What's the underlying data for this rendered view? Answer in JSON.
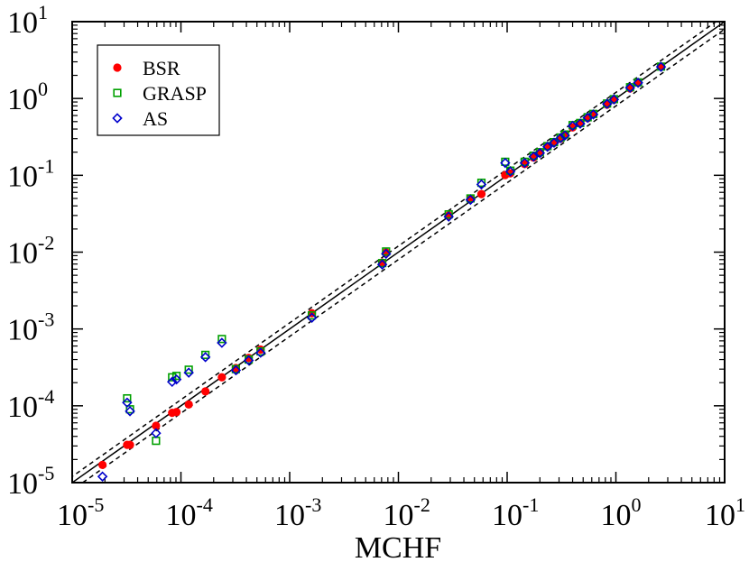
{
  "chart_data": {
    "type": "scatter",
    "title": "",
    "xlabel": "MCHF",
    "ylabel": "",
    "xscale": "log",
    "yscale": "log",
    "xlim": [
      1e-05,
      10
    ],
    "ylim": [
      1e-05,
      10
    ],
    "x_ticks": [
      {
        "base": "10",
        "exp": "-5",
        "value": 1e-05
      },
      {
        "base": "10",
        "exp": "-4",
        "value": 0.0001
      },
      {
        "base": "10",
        "exp": "-3",
        "value": 0.001
      },
      {
        "base": "10",
        "exp": "-2",
        "value": 0.01
      },
      {
        "base": "10",
        "exp": "-1",
        "value": 0.1
      },
      {
        "base": "10",
        "exp": "0",
        "value": 1
      },
      {
        "base": "10",
        "exp": "1",
        "value": 10
      }
    ],
    "y_ticks": [
      {
        "base": "10",
        "exp": "-5",
        "value": 1e-05
      },
      {
        "base": "10",
        "exp": "-4",
        "value": 0.0001
      },
      {
        "base": "10",
        "exp": "-3",
        "value": 0.001
      },
      {
        "base": "10",
        "exp": "-2",
        "value": 0.01
      },
      {
        "base": "10",
        "exp": "-1",
        "value": 0.1
      },
      {
        "base": "10",
        "exp": "0",
        "value": 1
      },
      {
        "base": "10",
        "exp": "1",
        "value": 10
      }
    ],
    "legend_position": "top-left",
    "reference_lines": [
      {
        "name": "y = x",
        "factor": 1.0,
        "style": "solid",
        "color": "#000000"
      },
      {
        "name": "+20%",
        "factor": 1.2,
        "style": "dashed",
        "color": "#000000"
      },
      {
        "name": "-20%",
        "factor": 0.8,
        "style": "dashed",
        "color": "#000000"
      }
    ],
    "series": [
      {
        "name": "BSR",
        "marker": "circle",
        "color": "#ff0000",
        "points": [
          [
            1.9e-05,
            1.7e-05
          ],
          [
            3.2e-05,
            3.1e-05
          ],
          [
            3.4e-05,
            3.1e-05
          ],
          [
            5.9e-05,
            5.5e-05
          ],
          [
            8.3e-05,
            8.1e-05
          ],
          [
            9.1e-05,
            8.3e-05
          ],
          [
            0.000118,
            0.000104
          ],
          [
            0.000168,
            0.000154
          ],
          [
            0.000238,
            0.000235
          ],
          [
            0.00032,
            0.00031
          ],
          [
            0.00042,
            0.00042
          ],
          [
            0.00054,
            0.00054
          ],
          [
            0.0016,
            0.0016
          ],
          [
            0.0071,
            0.0073
          ],
          [
            0.0077,
            0.0099
          ],
          [
            0.029,
            0.03
          ],
          [
            0.046,
            0.049
          ],
          [
            0.058,
            0.057
          ],
          [
            0.096,
            0.101
          ],
          [
            0.107,
            0.106
          ],
          [
            0.145,
            0.14
          ],
          [
            0.175,
            0.17
          ],
          [
            0.2,
            0.195
          ],
          [
            0.235,
            0.235
          ],
          [
            0.27,
            0.265
          ],
          [
            0.31,
            0.3
          ],
          [
            0.34,
            0.335
          ],
          [
            0.4,
            0.42
          ],
          [
            0.47,
            0.475
          ],
          [
            0.55,
            0.555
          ],
          [
            0.62,
            0.62
          ],
          [
            0.83,
            0.83
          ],
          [
            0.96,
            0.96
          ],
          [
            1.35,
            1.35
          ],
          [
            1.6,
            1.6
          ],
          [
            2.6,
            2.6
          ]
        ]
      },
      {
        "name": "GRASP",
        "marker": "square",
        "color": "#00a000",
        "points": [
          [
            3.2e-05,
            0.000125
          ],
          [
            3.4e-05,
            9e-05
          ],
          [
            5.9e-05,
            3.5e-05
          ],
          [
            8.3e-05,
            0.000235
          ],
          [
            9.1e-05,
            0.000245
          ],
          [
            0.000118,
            0.000295
          ],
          [
            0.000168,
            0.00046
          ],
          [
            0.000238,
            0.00074
          ],
          [
            0.00032,
            0.0003
          ],
          [
            0.00042,
            0.0004
          ],
          [
            0.00054,
            0.00051
          ],
          [
            0.0016,
            0.0015
          ],
          [
            0.0071,
            0.0072
          ],
          [
            0.0077,
            0.0102
          ],
          [
            0.029,
            0.031
          ],
          [
            0.046,
            0.05
          ],
          [
            0.058,
            0.08
          ],
          [
            0.096,
            0.15
          ],
          [
            0.107,
            0.115
          ],
          [
            0.145,
            0.15
          ],
          [
            0.175,
            0.18
          ],
          [
            0.2,
            0.2
          ],
          [
            0.235,
            0.24
          ],
          [
            0.27,
            0.27
          ],
          [
            0.31,
            0.31
          ],
          [
            0.34,
            0.34
          ],
          [
            0.4,
            0.45
          ],
          [
            0.47,
            0.48
          ],
          [
            0.55,
            0.57
          ],
          [
            0.62,
            0.63
          ],
          [
            0.83,
            0.86
          ],
          [
            0.96,
            0.98
          ],
          [
            1.35,
            1.4
          ],
          [
            1.6,
            1.62
          ],
          [
            2.6,
            2.6
          ]
        ]
      },
      {
        "name": "AS",
        "marker": "diamond",
        "color": "#0000cc",
        "points": [
          [
            1.9e-05,
            1.2e-05
          ],
          [
            3.2e-05,
            0.00011
          ],
          [
            3.4e-05,
            8.5e-05
          ],
          [
            5.9e-05,
            4.4e-05
          ],
          [
            8.3e-05,
            0.000205
          ],
          [
            9.1e-05,
            0.00022
          ],
          [
            0.000118,
            0.00027
          ],
          [
            0.000168,
            0.00043
          ],
          [
            0.000238,
            0.00066
          ],
          [
            0.00032,
            0.00029
          ],
          [
            0.00042,
            0.00039
          ],
          [
            0.00054,
            0.00049
          ],
          [
            0.0016,
            0.0014
          ],
          [
            0.0071,
            0.0069
          ],
          [
            0.0077,
            0.0095
          ],
          [
            0.029,
            0.029
          ],
          [
            0.046,
            0.048
          ],
          [
            0.058,
            0.076
          ],
          [
            0.096,
            0.145
          ],
          [
            0.107,
            0.112
          ],
          [
            0.145,
            0.145
          ],
          [
            0.175,
            0.175
          ],
          [
            0.2,
            0.195
          ],
          [
            0.235,
            0.235
          ],
          [
            0.27,
            0.265
          ],
          [
            0.31,
            0.305
          ],
          [
            0.34,
            0.33
          ],
          [
            0.4,
            0.44
          ],
          [
            0.47,
            0.47
          ],
          [
            0.55,
            0.56
          ],
          [
            0.62,
            0.62
          ],
          [
            0.83,
            0.85
          ],
          [
            0.96,
            0.97
          ],
          [
            1.35,
            1.38
          ],
          [
            1.6,
            1.6
          ],
          [
            2.6,
            2.58
          ]
        ]
      }
    ]
  }
}
